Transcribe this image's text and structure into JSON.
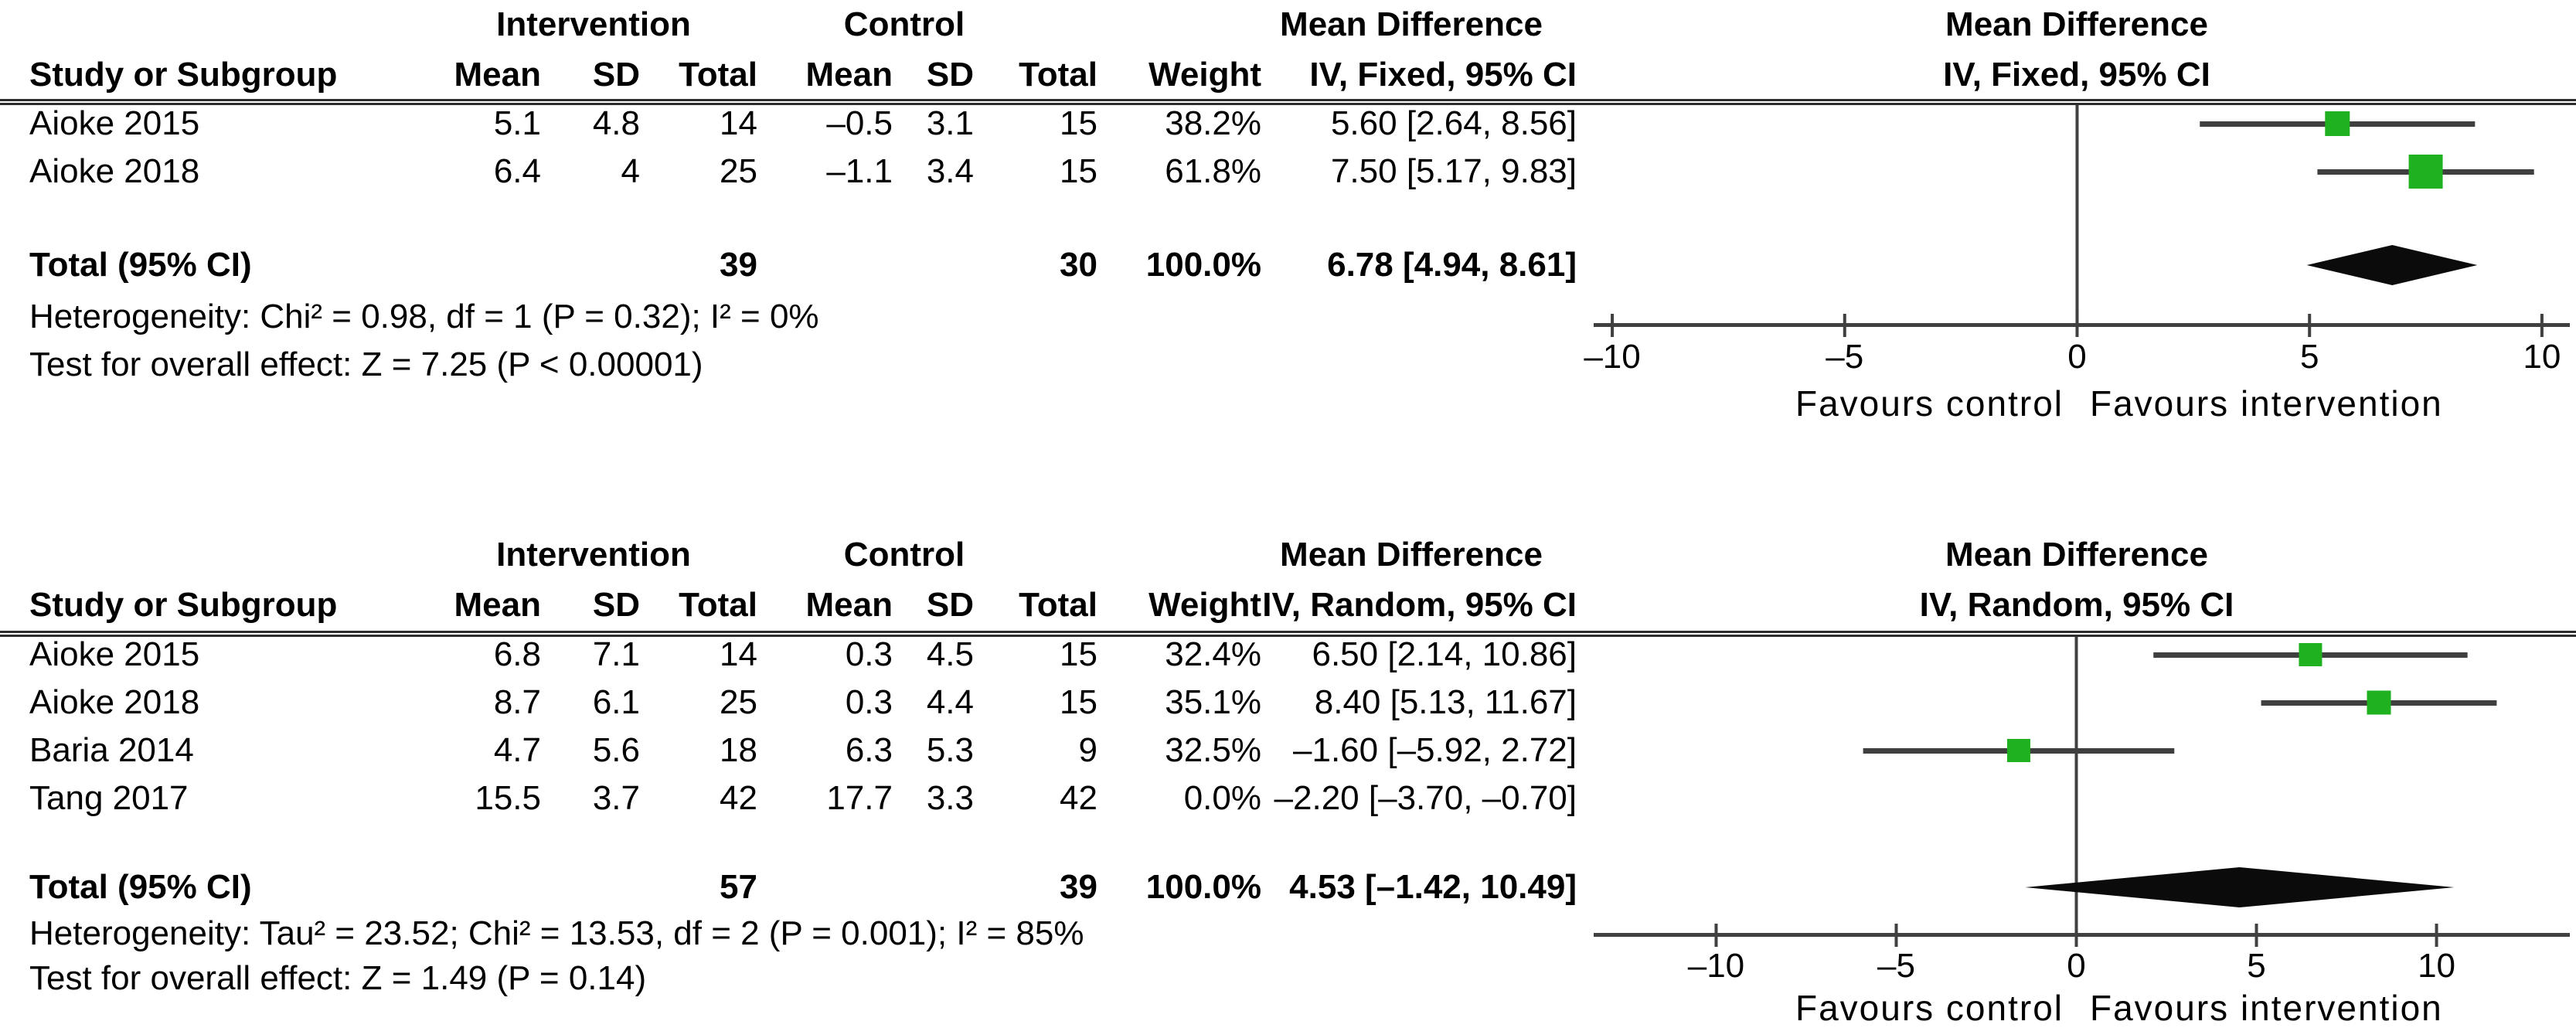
{
  "colors": {
    "marker_green": "#1fb11f",
    "line_dark": "#404040",
    "diamond_black": "#0b0b0b",
    "text": "#000000"
  },
  "chart_data": [
    {
      "type": "forest",
      "model": "Fixed",
      "effect_measure": "Mean Difference",
      "group_headers": {
        "intervention": "Intervention",
        "control": "Control",
        "effect": "Mean Difference"
      },
      "columns": [
        "Study or Subgroup",
        "Mean",
        "SD",
        "Total",
        "Mean",
        "SD",
        "Total",
        "Weight",
        "IV, Fixed, 95% CI"
      ],
      "studies": [
        {
          "name": "Aioke 2015",
          "i_mean": "5.1",
          "i_sd": "4.8",
          "i_total": "14",
          "c_mean": "–0.5",
          "c_sd": "3.1",
          "c_total": "15",
          "weight": "38.2%",
          "ci_text": "5.60 [2.64, 8.56]",
          "est": 5.6,
          "lo": 2.64,
          "hi": 8.56,
          "weight_pct": 38.2,
          "plotted": true
        },
        {
          "name": "Aioke 2018",
          "i_mean": "6.4",
          "i_sd": "4",
          "i_total": "25",
          "c_mean": "–1.1",
          "c_sd": "3.4",
          "c_total": "15",
          "weight": "61.8%",
          "ci_text": "7.50 [5.17, 9.83]",
          "est": 7.5,
          "lo": 5.17,
          "hi": 9.83,
          "weight_pct": 61.8,
          "plotted": true
        }
      ],
      "total": {
        "label": "Total (95% CI)",
        "i_total": "39",
        "c_total": "30",
        "weight": "100.0%",
        "ci_text": "6.78 [4.94, 8.61]"
      },
      "diamond": {
        "center": 6.78,
        "lo": 4.94,
        "hi": 8.61
      },
      "heterogeneity": "Heterogeneity: Chi² = 0.98, df = 1 (P = 0.32); I² = 0%",
      "overall_effect": "Test for overall effect: Z = 7.25 (P < 0.00001)",
      "plot_header_line1": "Mean Difference",
      "plot_header_line2": "IV, Fixed, 95% CI",
      "axis": {
        "ticks": [
          "–10",
          "–5",
          "0",
          "5",
          "10"
        ],
        "tick_values": [
          -10,
          -5,
          0,
          5,
          10
        ],
        "xrange": [
          -10.4,
          10.6
        ],
        "left_label": "Favours control",
        "right_label": "Favours intervention"
      }
    },
    {
      "type": "forest",
      "model": "Random",
      "effect_measure": "Mean Difference",
      "group_headers": {
        "intervention": "Intervention",
        "control": "Control",
        "effect": "Mean Difference"
      },
      "columns": [
        "Study or Subgroup",
        "Mean",
        "SD",
        "Total",
        "Mean",
        "SD",
        "Total",
        "Weight",
        "IV, Random, 95% CI"
      ],
      "studies": [
        {
          "name": "Aioke 2015",
          "i_mean": "6.8",
          "i_sd": "7.1",
          "i_total": "14",
          "c_mean": "0.3",
          "c_sd": "4.5",
          "c_total": "15",
          "weight": "32.4%",
          "ci_text": "6.50 [2.14, 10.86]",
          "est": 6.5,
          "lo": 2.14,
          "hi": 10.86,
          "weight_pct": 32.4,
          "plotted": true
        },
        {
          "name": "Aioke 2018",
          "i_mean": "8.7",
          "i_sd": "6.1",
          "i_total": "25",
          "c_mean": "0.3",
          "c_sd": "4.4",
          "c_total": "15",
          "weight": "35.1%",
          "ci_text": "8.40 [5.13, 11.67]",
          "est": 8.4,
          "lo": 5.13,
          "hi": 11.67,
          "weight_pct": 35.1,
          "plotted": true
        },
        {
          "name": "Baria 2014",
          "i_mean": "4.7",
          "i_sd": "5.6",
          "i_total": "18",
          "c_mean": "6.3",
          "c_sd": "5.3",
          "c_total": "9",
          "weight": "32.5%",
          "ci_text": "–1.60 [–5.92, 2.72]",
          "est": -1.6,
          "lo": -5.92,
          "hi": 2.72,
          "weight_pct": 32.5,
          "plotted": true
        },
        {
          "name": "Tang 2017",
          "i_mean": "15.5",
          "i_sd": "3.7",
          "i_total": "42",
          "c_mean": "17.7",
          "c_sd": "3.3",
          "c_total": "42",
          "weight": "0.0%",
          "ci_text": "–2.20 [–3.70, –0.70]",
          "est": -2.2,
          "lo": -3.7,
          "hi": -0.7,
          "weight_pct": 0.0,
          "plotted": false
        }
      ],
      "total": {
        "label": "Total (95% CI)",
        "i_total": "57",
        "c_total": "39",
        "weight": "100.0%",
        "ci_text": "4.53 [–1.42, 10.49]"
      },
      "diamond": {
        "center": 4.53,
        "lo": -1.42,
        "hi": 10.49
      },
      "heterogeneity": "Heterogeneity: Tau² = 23.52; Chi² = 13.53, df = 2 (P = 0.001); I² = 85%",
      "overall_effect": "Test for overall effect: Z = 1.49 (P = 0.14)",
      "plot_header_line1": "Mean Difference",
      "plot_header_line2": "IV, Random, 95% CI",
      "axis": {
        "ticks": [
          "–10",
          "–5",
          "0",
          "5",
          "10"
        ],
        "tick_values": [
          -10,
          -5,
          0,
          5,
          10
        ],
        "xrange": [
          -13.4,
          13.7
        ],
        "left_label": "Favours control",
        "right_label": "Favours intervention"
      }
    }
  ]
}
